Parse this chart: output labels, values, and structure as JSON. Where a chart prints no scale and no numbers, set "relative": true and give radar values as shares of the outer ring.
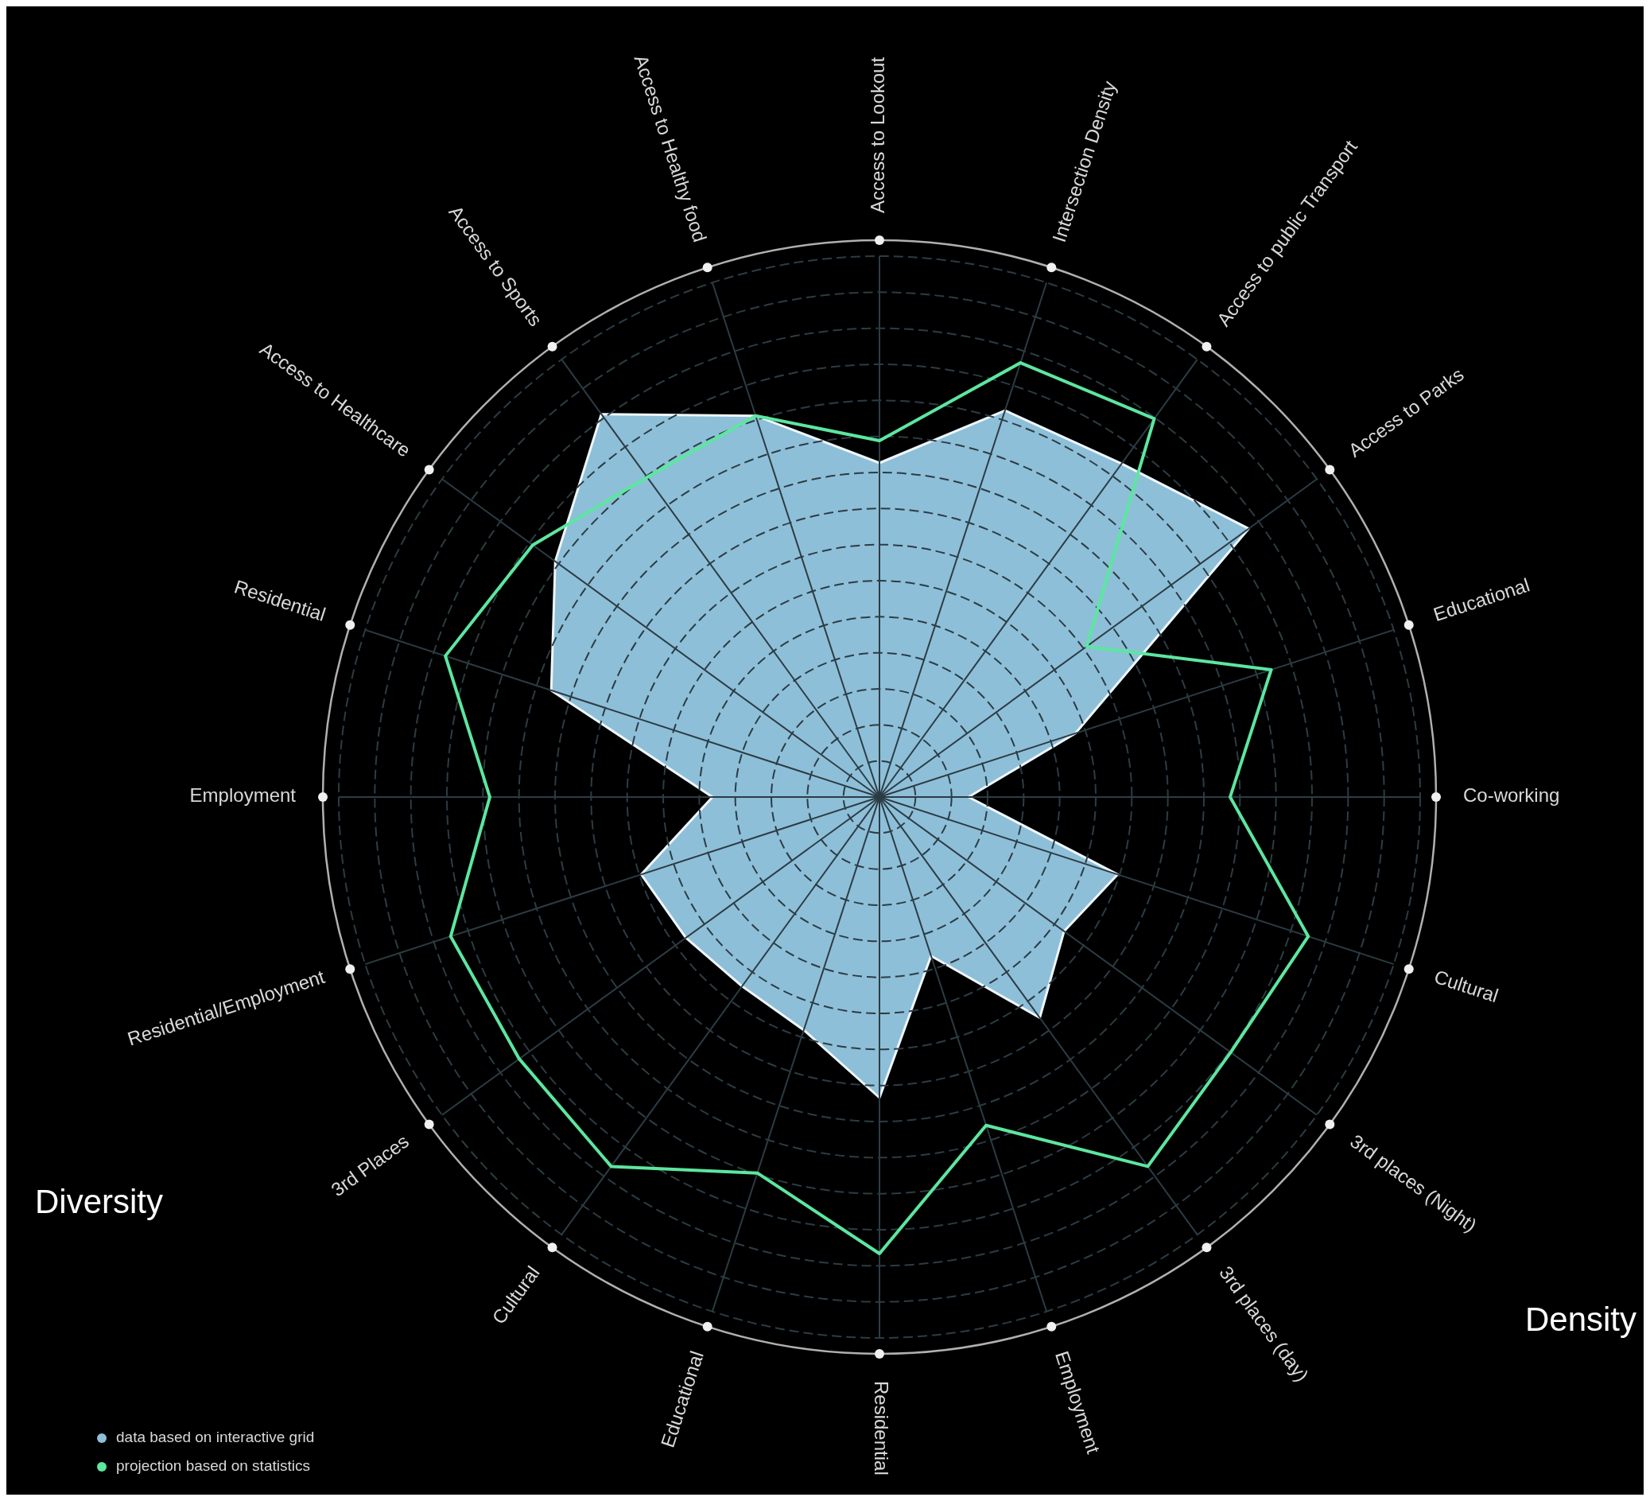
{
  "chart_data": {
    "type": "radar",
    "relative": true,
    "grid": true,
    "legend": "bottom left",
    "categories": [
      "Access to Lookout",
      "Intersection Density",
      "Access to public Transport",
      "Access to Parks",
      "Educational",
      "Co-working",
      "Cultural",
      "3rd places (Night)",
      "3rd places (day)",
      "Employment",
      "Residential",
      "Educational",
      "Cultural",
      "3rd Places",
      "Residential/Employment",
      "Employment",
      "Residential",
      "Access to Healthcare",
      "Access to Sports",
      "Access to Healthy food"
    ],
    "series": [
      {
        "name": "data based on interactive grid",
        "type": "area",
        "color": "#8ebfd8",
        "values": [
          0.6,
          0.73,
          0.74,
          0.82,
          0.37,
          0.16,
          0.45,
          0.41,
          0.49,
          0.3,
          0.54,
          0.44,
          0.42,
          0.43,
          0.45,
          0.3,
          0.62,
          0.72,
          0.85,
          0.72
        ]
      },
      {
        "name": "projection based on statistics",
        "color": "#5de6a0",
        "values": [
          0.64,
          0.82,
          0.84,
          0.46,
          0.74,
          0.63,
          0.81,
          0.78,
          0.82,
          0.62,
          0.82,
          0.71,
          0.82,
          0.8,
          0.81,
          0.7,
          0.82,
          0.77,
          0.71,
          0.72
        ]
      }
    ],
    "annotations": [
      "Diversity",
      "Density"
    ]
  }
}
